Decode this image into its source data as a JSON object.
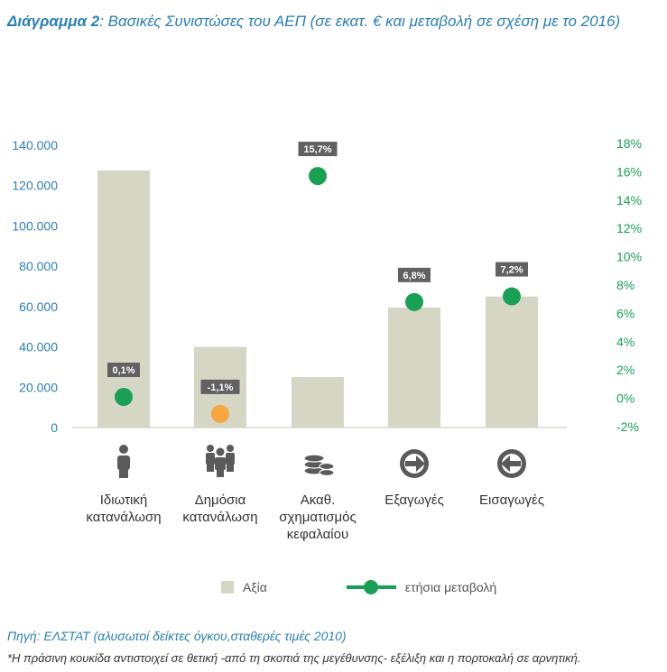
{
  "title": {
    "lead": "Διάγραμμα 2",
    "text": ": Βασικές Συνιστώσες του ΑΕΠ (σε εκατ. € και μεταβολή σε σχέση με το 2016)"
  },
  "chart_data": {
    "type": "bar",
    "categories": [
      [
        "Ιδιωτική",
        "κατανάλωση"
      ],
      [
        "Δημόσια",
        "κατανάλωση"
      ],
      [
        "Ακαθ.",
        "σχηματισμός",
        "κεφαλαίου"
      ],
      [
        "Εξαγωγές"
      ],
      [
        "Εισαγωγές"
      ]
    ],
    "icons": [
      "person-icon",
      "group-icon",
      "coins-icon",
      "arrow-right-icon",
      "arrow-left-icon"
    ],
    "bar_series": {
      "name": "Αξία",
      "values": [
        127500,
        40000,
        25000,
        59500,
        65000
      ],
      "color": "#d5d6c4"
    },
    "marker_series": {
      "name": "ετήσια μεταβολή",
      "values": [
        0.1,
        -1.1,
        15.7,
        6.8,
        7.2
      ],
      "labels": [
        "0,1%",
        "-1,1%",
        "15,7%",
        "6,8%",
        "7,2%"
      ],
      "positive_color": "#1aa055",
      "negative_color": "#f7a640"
    },
    "y_left": {
      "ylim": [
        0,
        140000
      ],
      "ticks": [
        "0",
        "20.000",
        "40.000",
        "60.000",
        "80.000",
        "100.000",
        "120.000",
        "140.000"
      ],
      "color": "#2c7fb3"
    },
    "y_right": {
      "ylim": [
        -2,
        18
      ],
      "ticks": [
        "-2%",
        "0%",
        "2%",
        "4%",
        "6%",
        "8%",
        "10%",
        "12%",
        "14%",
        "16%",
        "18%"
      ],
      "color": "#1aa055"
    },
    "legend": {
      "placement": "bottom",
      "bar_label": "Αξία",
      "line_label": "ετήσια μεταβολή"
    }
  },
  "source": "Πηγή: ΕΛΣΤΑΤ (αλυσωτοί δείκτες όγκου,σταθερές τιμές 2010)",
  "note": "*Η πράσινη κουκίδα αντιστοιχεί σε θετική -από τη σκοπιά της μεγέθυνσης- εξέλιξη και η πορτοκαλή σε αρνητική."
}
